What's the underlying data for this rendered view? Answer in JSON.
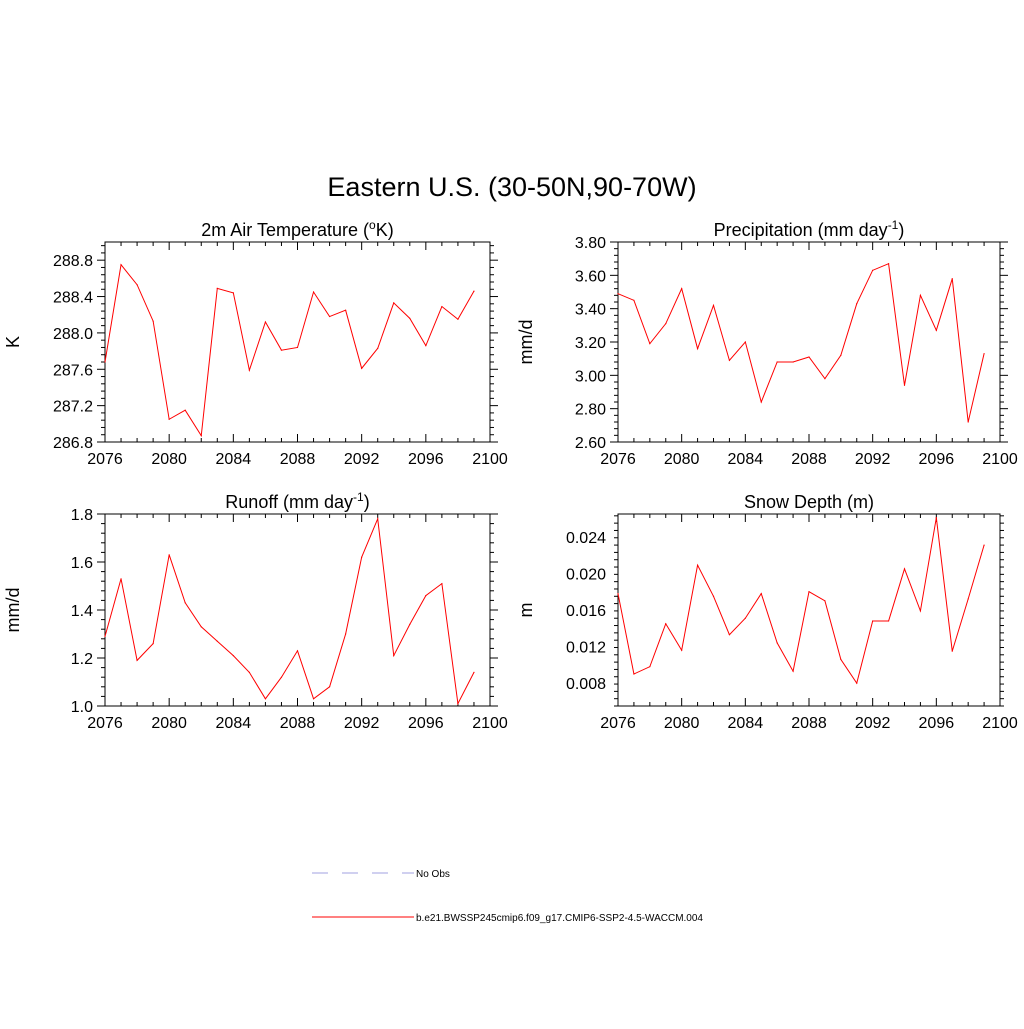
{
  "figure_title": "Eastern U.S. (30-50N,90-70W)",
  "chart_data": [
    {
      "type": "line",
      "title": "2m Air Temperature (°K)",
      "title_parts": [
        "2m Air Temperature (",
        "o",
        "K)"
      ],
      "title_style": "superscript",
      "xlabel": "",
      "ylabel": "K",
      "xlim": [
        2076,
        2100
      ],
      "ylim": [
        286.8,
        289.0
      ],
      "xticks": [
        2076,
        2080,
        2084,
        2088,
        2092,
        2096,
        2100
      ],
      "yticks": [
        286.8,
        287.2,
        287.6,
        288.0,
        288.4,
        288.8
      ],
      "ytick_labels": [
        "286.8",
        "287.2",
        "287.6",
        "288.0",
        "288.4",
        "288.8"
      ],
      "x": [
        2076,
        2077,
        2078,
        2079,
        2080,
        2081,
        2082,
        2083,
        2084,
        2085,
        2086,
        2087,
        2088,
        2089,
        2090,
        2091,
        2092,
        2093,
        2094,
        2095,
        2096,
        2097,
        2098,
        2099
      ],
      "series": [
        {
          "name": "b.e21.BWSSP245cmip6.f09_g17.CMIP6-SSP2-4.5-WACCM.004",
          "values": [
            287.68,
            288.75,
            288.53,
            288.13,
            287.05,
            287.15,
            286.87,
            288.49,
            288.44,
            287.59,
            288.12,
            287.81,
            287.84,
            288.45,
            288.18,
            288.25,
            287.61,
            287.83,
            288.33,
            288.16,
            287.86,
            288.29,
            288.15,
            288.46
          ]
        }
      ],
      "line_color": "#ff0000",
      "grid": false
    },
    {
      "type": "line",
      "title": "Precipitation (mm day-1)",
      "title_parts": [
        "Precipitation (mm day",
        "-1",
        ")"
      ],
      "title_style": "superscript",
      "xlabel": "",
      "ylabel": "mm/d",
      "xlim": [
        2076,
        2100
      ],
      "ylim": [
        2.6,
        3.8
      ],
      "xticks": [
        2076,
        2080,
        2084,
        2088,
        2092,
        2096,
        2100
      ],
      "yticks": [
        2.6,
        2.8,
        3.0,
        3.2,
        3.4,
        3.6,
        3.8
      ],
      "ytick_labels": [
        "2.60",
        "2.80",
        "3.00",
        "3.20",
        "3.40",
        "3.60",
        "3.80"
      ],
      "x": [
        2076,
        2077,
        2078,
        2079,
        2080,
        2081,
        2082,
        2083,
        2084,
        2085,
        2086,
        2087,
        2088,
        2089,
        2090,
        2091,
        2092,
        2093,
        2094,
        2095,
        2096,
        2097,
        2098,
        2099
      ],
      "series": [
        {
          "name": "b.e21.BWSSP245cmip6.f09_g17.CMIP6-SSP2-4.5-WACCM.004",
          "values": [
            3.49,
            3.45,
            3.19,
            3.31,
            3.52,
            3.16,
            3.42,
            3.09,
            3.2,
            2.84,
            3.08,
            3.08,
            3.11,
            2.98,
            3.12,
            3.43,
            3.63,
            3.67,
            2.94,
            3.48,
            3.27,
            3.58,
            2.72,
            3.13
          ]
        }
      ],
      "line_color": "#ff0000",
      "grid": false
    },
    {
      "type": "line",
      "title": "Runoff (mm day-1)",
      "title_parts": [
        "Runoff (mm day",
        "-1",
        ")"
      ],
      "title_style": "superscript",
      "xlabel": "",
      "ylabel": "mm/d",
      "xlim": [
        2076,
        2100
      ],
      "ylim": [
        1.0,
        1.8
      ],
      "xticks": [
        2076,
        2080,
        2084,
        2088,
        2092,
        2096,
        2100
      ],
      "yticks": [
        1.0,
        1.2,
        1.4,
        1.6,
        1.8
      ],
      "ytick_labels": [
        "1.0",
        "1.2",
        "1.4",
        "1.6",
        "1.8"
      ],
      "x": [
        2076,
        2077,
        2078,
        2079,
        2080,
        2081,
        2082,
        2083,
        2084,
        2085,
        2086,
        2087,
        2088,
        2089,
        2090,
        2091,
        2092,
        2093,
        2094,
        2095,
        2096,
        2097,
        2098,
        2099
      ],
      "series": [
        {
          "name": "b.e21.BWSSP245cmip6.f09_g17.CMIP6-SSP2-4.5-WACCM.004",
          "values": [
            1.29,
            1.53,
            1.19,
            1.26,
            1.63,
            1.43,
            1.33,
            1.27,
            1.21,
            1.14,
            1.03,
            1.12,
            1.23,
            1.03,
            1.08,
            1.3,
            1.62,
            1.78,
            1.21,
            1.34,
            1.46,
            1.51,
            1.01,
            1.14
          ]
        }
      ],
      "line_color": "#ff0000",
      "grid": false
    },
    {
      "type": "line",
      "title": "Snow Depth (m)",
      "xlabel": "",
      "ylabel": "m",
      "xlim": [
        2076,
        2100
      ],
      "ylim": [
        0.0055,
        0.0265
      ],
      "xticks": [
        2076,
        2080,
        2084,
        2088,
        2092,
        2096,
        2100
      ],
      "yticks": [
        0.008,
        0.012,
        0.016,
        0.02,
        0.024
      ],
      "ytick_labels": [
        "0.008",
        "0.012",
        "0.016",
        "0.020",
        "0.024"
      ],
      "x": [
        2076,
        2077,
        2078,
        2079,
        2080,
        2081,
        2082,
        2083,
        2084,
        2085,
        2086,
        2087,
        2088,
        2089,
        2090,
        2091,
        2092,
        2093,
        2094,
        2095,
        2096,
        2097,
        2098,
        2099
      ],
      "series": [
        {
          "name": "b.e21.BWSSP245cmip6.f09_g17.CMIP6-SSP2-4.5-WACCM.004",
          "values": [
            0.0178,
            0.009,
            0.0098,
            0.0145,
            0.0116,
            0.0209,
            0.0175,
            0.0133,
            0.0151,
            0.0178,
            0.0124,
            0.0093,
            0.018,
            0.017,
            0.0106,
            0.008,
            0.0148,
            0.0148,
            0.0205,
            0.0159,
            0.0261,
            0.0115,
            0.0172,
            0.0231
          ]
        }
      ],
      "line_color": "#ff0000",
      "grid": false
    }
  ],
  "legend": {
    "placement": "bottom-center",
    "items": [
      {
        "label": "No Obs",
        "color": "#b3b3e6",
        "style": "dashed"
      },
      {
        "label": "b.e21.BWSSP245cmip6.f09_g17.CMIP6-SSP2-4.5-WACCM.004",
        "color": "#ff0000",
        "style": "solid"
      }
    ]
  }
}
